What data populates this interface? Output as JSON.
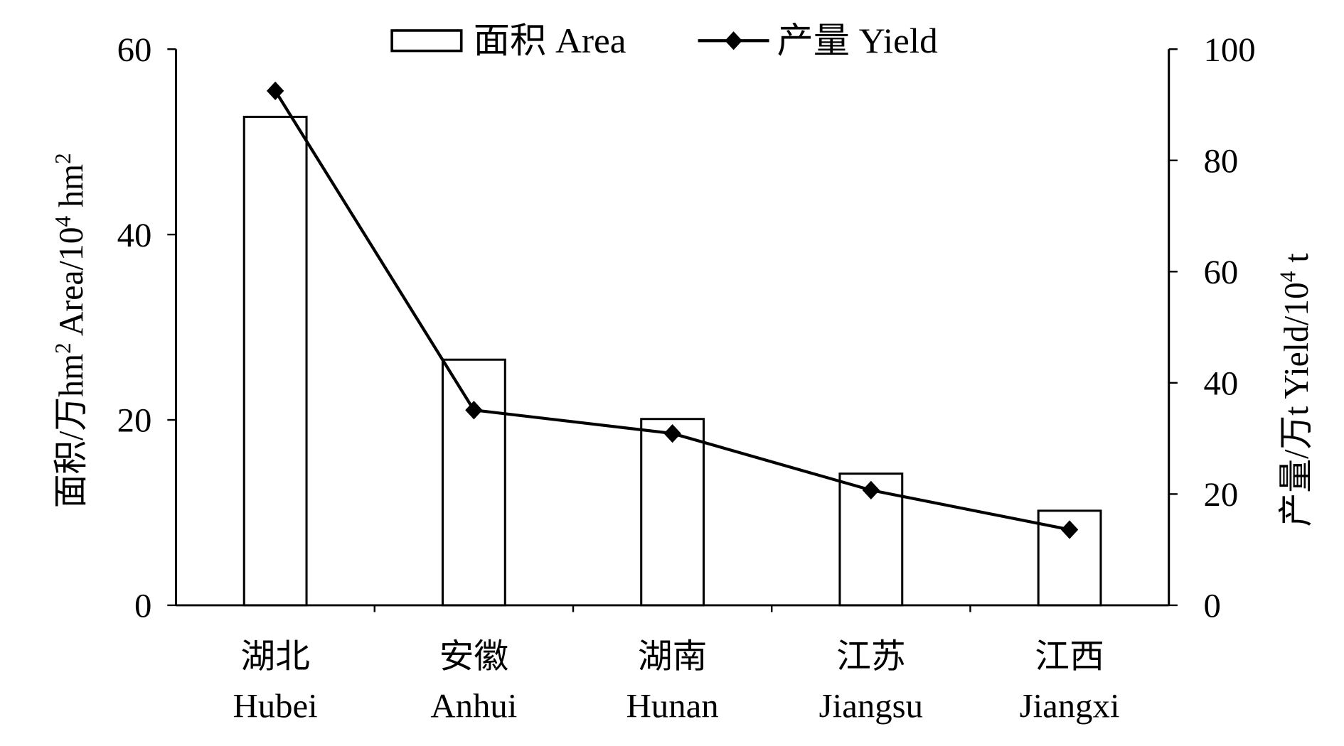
{
  "chart_data": {
    "type": "bar+line",
    "categories": [
      {
        "zh": "湖北",
        "en": "Hubei"
      },
      {
        "zh": "安徽",
        "en": "Anhui"
      },
      {
        "zh": "湖南",
        "en": "Hunan"
      },
      {
        "zh": "江苏",
        "en": "Jiangsu"
      },
      {
        "zh": "江西",
        "en": "Jiangxi"
      }
    ],
    "series": [
      {
        "name": "面积 Area",
        "type": "bar",
        "axis": "left",
        "values": [
          52.7,
          26.5,
          20.1,
          14.2,
          10.2
        ]
      },
      {
        "name": "产量 Yield",
        "type": "line",
        "axis": "right",
        "marker": "diamond",
        "values": [
          92.5,
          35.1,
          30.9,
          20.7,
          13.6
        ]
      }
    ],
    "ylabel_left": {
      "main": "面积/万hm",
      "sup1": "2",
      "mid": "  Area/10",
      "sup2": "4",
      "end": " hm",
      "sup3": "2"
    },
    "ylabel_right": {
      "main": "产量/万t Yield/10",
      "sup": "4",
      "end": " t"
    },
    "ylim_left": [
      0,
      60
    ],
    "yticks_left": [
      0,
      20,
      40,
      60
    ],
    "ylim_right": [
      0,
      100
    ],
    "yticks_right": [
      0,
      20,
      40,
      60,
      80,
      100
    ],
    "grid": false,
    "legend_position": "top-center",
    "colors": {
      "bar_fill": "#ffffff",
      "stroke": "#000000"
    }
  }
}
